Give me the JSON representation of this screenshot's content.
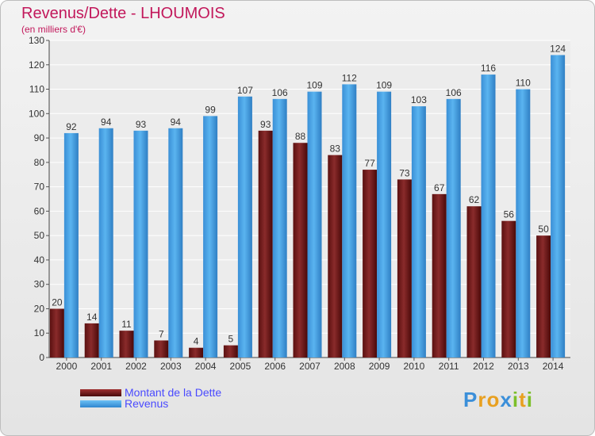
{
  "title": "Revenus/Dette - LHOUMOIS",
  "unit_label": "(en milliers d'€)",
  "chart_data": {
    "type": "bar",
    "title": "Revenus/Dette - LHOUMOIS",
    "ylabel": "(en milliers d'€)",
    "ylim": [
      0,
      130
    ],
    "yticks": [
      0,
      10,
      20,
      30,
      40,
      50,
      60,
      70,
      80,
      90,
      100,
      110,
      120,
      130
    ],
    "grid": true,
    "legend_position": "bottom-left",
    "categories": [
      "2000",
      "2001",
      "2002",
      "2003",
      "2004",
      "2005",
      "2006",
      "2007",
      "2008",
      "2009",
      "2010",
      "2011",
      "2012",
      "2013",
      "2014"
    ],
    "series": [
      {
        "name": "Montant de la Dette",
        "color": "#7a1f1f",
        "values": [
          20,
          14,
          11,
          7,
          4,
          5,
          93,
          88,
          83,
          77,
          73,
          67,
          62,
          56,
          50
        ]
      },
      {
        "name": "Revenus",
        "color": "#4aa3e6",
        "values": [
          92,
          94,
          93,
          94,
          99,
          107,
          106,
          109,
          112,
          109,
          103,
          106,
          116,
          110,
          124
        ]
      }
    ]
  },
  "logo": {
    "letters": [
      "P",
      "r",
      "o",
      "x",
      "i",
      "t",
      "i"
    ],
    "colors": [
      "#3b8fd9",
      "#e8a020",
      "#e8a020",
      "#3b8fd9",
      "#7cbf2a",
      "#e8a020",
      "#7cbf2a"
    ]
  }
}
